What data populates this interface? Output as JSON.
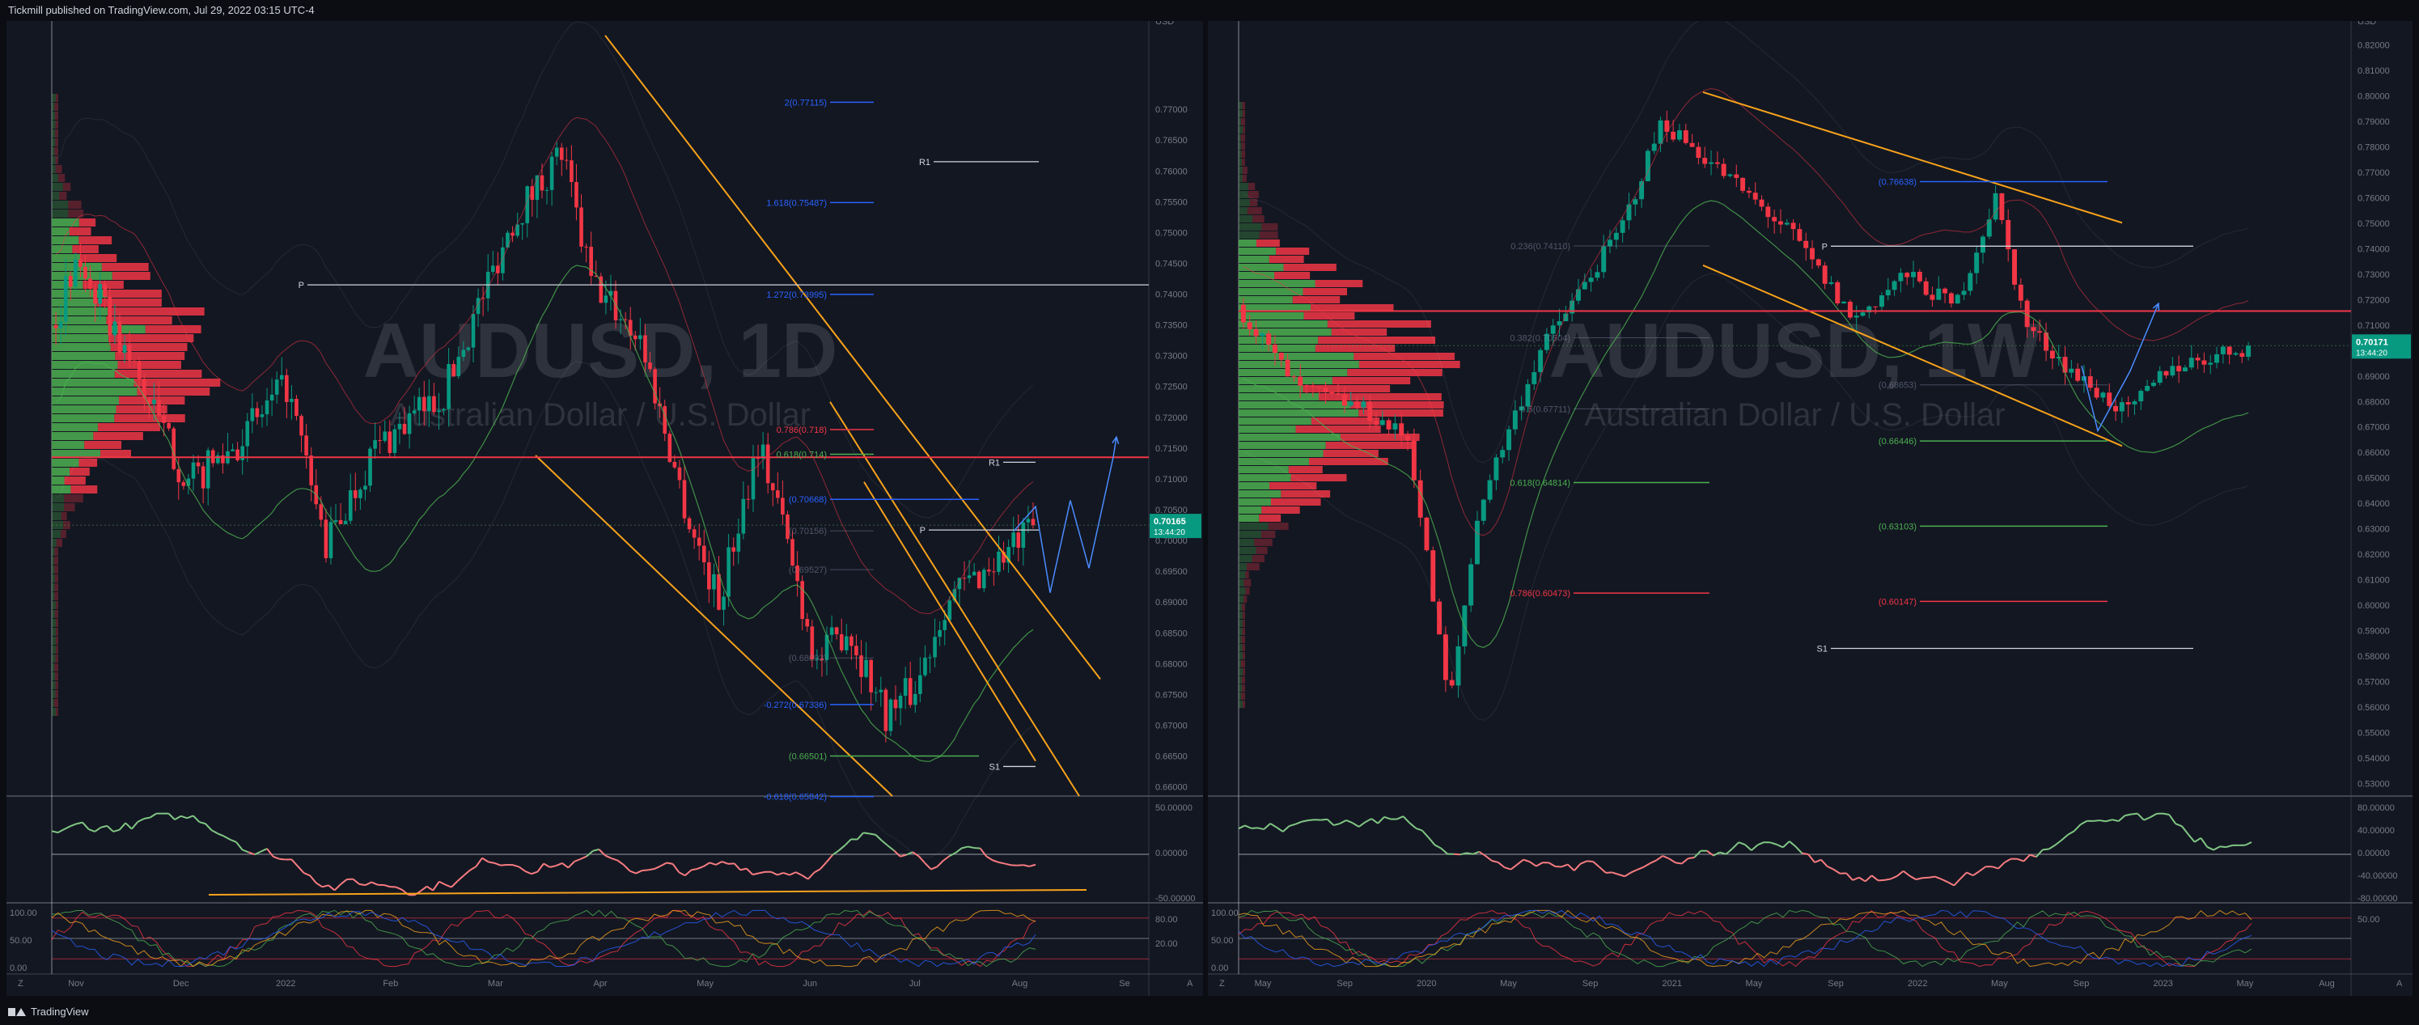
{
  "header": {
    "published": "Tickmill published on TradingView.com, Jul 29, 2022 03:15 UTC-4"
  },
  "footer": {
    "brand": "TradingView"
  },
  "colors": {
    "background": "#131722",
    "bull": "#089981",
    "bear": "#f23645",
    "channel": "#f7a21b",
    "fib_blue": "#2962ff",
    "fib_green": "#4caf50",
    "fib_red": "#f23645",
    "projection": "#4a8cff"
  },
  "charts": [
    {
      "id": "daily",
      "watermark_symbol": "AUDUSD, 1D",
      "watermark_desc": "Australian Dollar / U.S. Dollar",
      "currency": "USD",
      "price_axis": [
        "0.77000",
        "0.76500",
        "0.76000",
        "0.75500",
        "0.75000",
        "0.74500",
        "0.74000",
        "0.73500",
        "0.73000",
        "0.72500",
        "0.72000",
        "0.71500",
        "0.71000",
        "0.70500",
        "0.70000",
        "0.69500",
        "0.69000",
        "0.68500",
        "0.68000",
        "0.67500",
        "0.67000",
        "0.66500",
        "0.66000"
      ],
      "price_range": [
        0.6585,
        0.7825
      ],
      "time_axis": [
        "Nov",
        "Dec",
        "2022",
        "Feb",
        "Mar",
        "Apr",
        "May",
        "Jun",
        "Jul",
        "Aug",
        "Se"
      ],
      "last_price": "0.70165",
      "countdown": "13:44:20",
      "pivots": [
        {
          "label": "R1",
          "price": 0.7615
        },
        {
          "label": "P",
          "price": 0.7415
        },
        {
          "label": "R1",
          "price": 0.7127
        },
        {
          "label": "P",
          "price": 0.7017
        },
        {
          "label": "S1",
          "price": 0.6633
        }
      ],
      "fib_levels": [
        {
          "label": "2(0.77115)",
          "price": 0.77115,
          "color": "blue"
        },
        {
          "label": "1.618(0.75487)",
          "price": 0.75487,
          "color": "blue"
        },
        {
          "label": "1.272(0.73995)",
          "price": 0.73995,
          "color": "blue"
        },
        {
          "label": "0.786(0.718)",
          "price": 0.718,
          "color": "red"
        },
        {
          "label": "0.618(0.714)",
          "price": 0.714,
          "color": "green"
        },
        {
          "label": "(0.70668)",
          "price": 0.70668,
          "color": "blue"
        },
        {
          "label": "(0.70156)",
          "price": 0.70156,
          "color": "faint"
        },
        {
          "label": "(0.69527)",
          "price": 0.69527,
          "color": "faint"
        },
        {
          "label": "(0.68093)",
          "price": 0.68093,
          "color": "faint"
        },
        {
          "label": "-0.272(0.67336)",
          "price": 0.67336,
          "color": "blue"
        },
        {
          "label": "(0.66501)",
          "price": 0.66501,
          "color": "green"
        },
        {
          "label": "-0.618(0.65842)",
          "price": 0.65842,
          "color": "blue"
        }
      ],
      "rsi_axis": [
        "50.00000",
        "0.00000",
        "-50.00000"
      ],
      "stoch_axis": [
        "100.00",
        "50.00",
        "0.00"
      ],
      "stoch_axis_right": [
        "80.00",
        "20.00"
      ]
    },
    {
      "id": "weekly",
      "watermark_symbol": "AUDUSD, 1W",
      "watermark_desc": "Australian Dollar / U.S. Dollar",
      "currency": "USD",
      "price_axis": [
        "0.82000",
        "0.81000",
        "0.80000",
        "0.79000",
        "0.78000",
        "0.77000",
        "0.76000",
        "0.75000",
        "0.74000",
        "0.73000",
        "0.72000",
        "0.71000",
        "0.70000",
        "0.69000",
        "0.68000",
        "0.67000",
        "0.66000",
        "0.65000",
        "0.64000",
        "0.63000",
        "0.62000",
        "0.61000",
        "0.60000",
        "0.59000",
        "0.58000",
        "0.57000",
        "0.56000",
        "0.55000",
        "0.54000",
        "0.53000"
      ],
      "price_range": [
        0.525,
        0.825
      ],
      "time_axis": [
        "May",
        "Sep",
        "2020",
        "May",
        "Sep",
        "2021",
        "May",
        "Sep",
        "2022",
        "May",
        "Sep",
        "2023",
        "May",
        "Aug"
      ],
      "last_price": "0.70171",
      "countdown": "13:44:20",
      "pivots": [
        {
          "label": "P",
          "price": 0.741
        },
        {
          "label": "S1",
          "price": 0.583
        }
      ],
      "fib_levels": [
        {
          "label": "0.236(0.74110)",
          "price": 0.7411,
          "color": "faint"
        },
        {
          "label": "(0.76638)",
          "price": 0.76638,
          "color": "blue"
        },
        {
          "label": "0.382(0.70504)",
          "price": 0.70504,
          "color": "faint"
        },
        {
          "label": "(0.68653)",
          "price": 0.68653,
          "color": "faint"
        },
        {
          "label": "0.5(0.67711)",
          "price": 0.67711,
          "color": "faint"
        },
        {
          "label": "(0.66446)",
          "price": 0.66446,
          "color": "green"
        },
        {
          "label": "0.618(0.64814)",
          "price": 0.64814,
          "color": "green"
        },
        {
          "label": "(0.63103)",
          "price": 0.63103,
          "color": "green"
        },
        {
          "label": "0.786(0.60473)",
          "price": 0.60473,
          "color": "red"
        },
        {
          "label": "(0.60147)",
          "price": 0.60147,
          "color": "red"
        }
      ],
      "rsi_axis": [
        "80.00000",
        "40.00000",
        "0.00000",
        "-40.00000",
        "-80.00000"
      ],
      "stoch_axis": [
        "100.00",
        "50.00",
        "0.00"
      ],
      "stoch_axis_right": [
        "50.00"
      ]
    }
  ]
}
